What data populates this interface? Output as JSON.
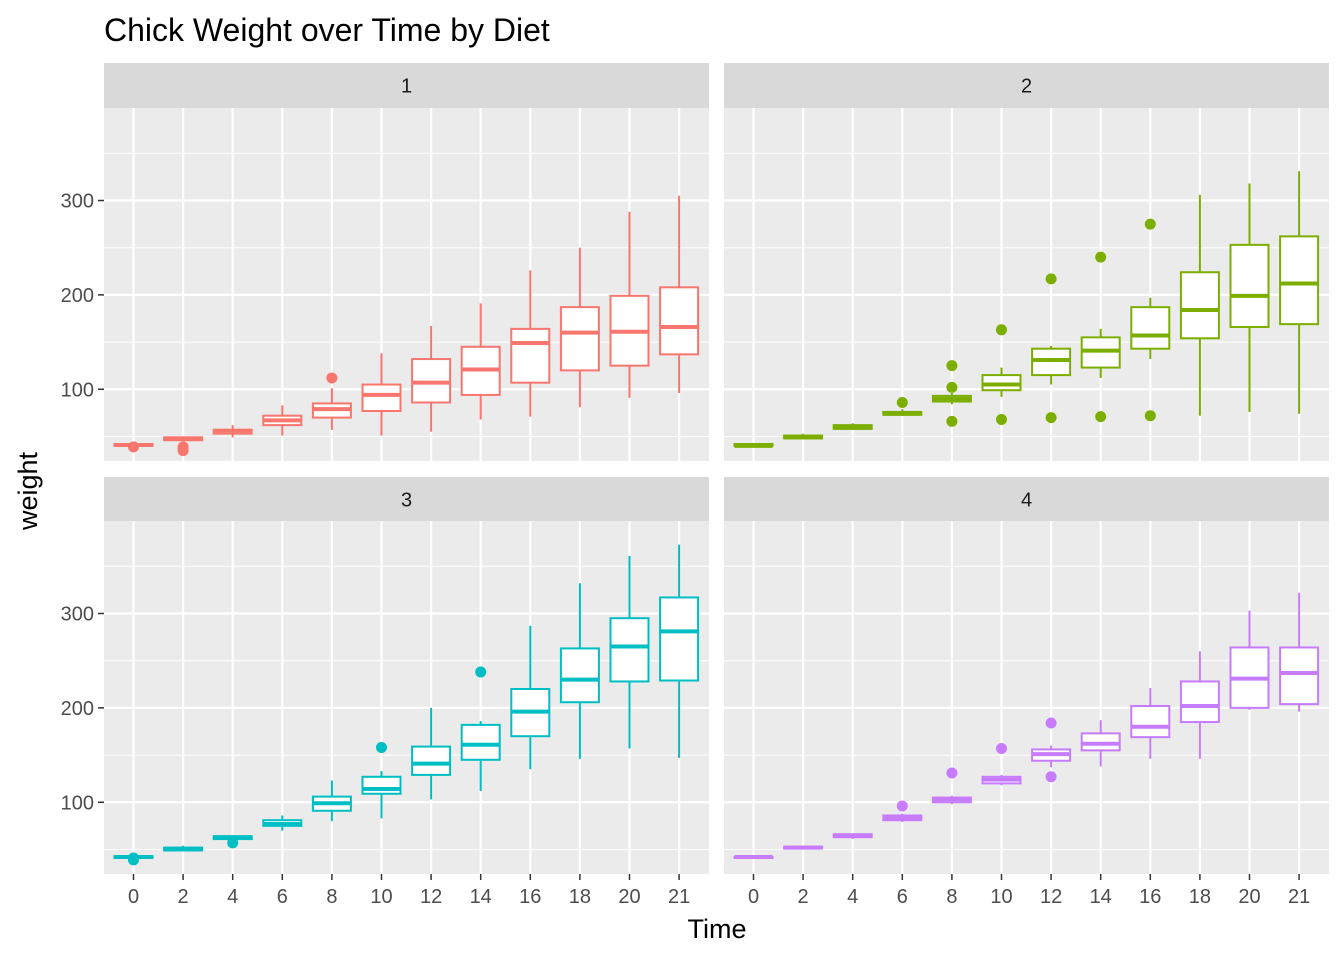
{
  "chart_data": {
    "type": "boxplot",
    "title": "Chick Weight over Time by Diet",
    "xlabel": "Time",
    "ylabel": "weight",
    "facet_by": "Diet",
    "facet_layout": "2x2 grid",
    "legend": "none",
    "grid": true,
    "x_categories": [
      "0",
      "2",
      "4",
      "6",
      "8",
      "10",
      "12",
      "14",
      "16",
      "18",
      "20",
      "21"
    ],
    "y_ticks": [
      100,
      200,
      300
    ],
    "ylim": [
      24,
      398
    ],
    "panels": [
      {
        "label": "1",
        "color": "#F8766D",
        "boxes": [
          {
            "time": "0",
            "min": 39,
            "q1": 40,
            "median": 41,
            "q3": 42,
            "max": 43,
            "outliers": [
              39
            ]
          },
          {
            "time": "2",
            "min": 45,
            "q1": 46,
            "median": 48,
            "q3": 49,
            "max": 50,
            "outliers": [
              35,
              37,
              39
            ]
          },
          {
            "time": "4",
            "min": 49,
            "q1": 53,
            "median": 56,
            "q3": 57,
            "max": 62,
            "outliers": []
          },
          {
            "time": "6",
            "min": 51,
            "q1": 62,
            "median": 67,
            "q3": 72,
            "max": 83,
            "outliers": []
          },
          {
            "time": "8",
            "min": 57,
            "q1": 70,
            "median": 79,
            "q3": 85,
            "max": 101,
            "outliers": [
              112
            ]
          },
          {
            "time": "10",
            "min": 51,
            "q1": 77,
            "median": 94,
            "q3": 105,
            "max": 138,
            "outliers": []
          },
          {
            "time": "12",
            "min": 55,
            "q1": 86,
            "median": 107,
            "q3": 132,
            "max": 167,
            "outliers": []
          },
          {
            "time": "14",
            "min": 68,
            "q1": 94,
            "median": 121,
            "q3": 145,
            "max": 191,
            "outliers": []
          },
          {
            "time": "16",
            "min": 71,
            "q1": 107,
            "median": 149,
            "q3": 164,
            "max": 226,
            "outliers": []
          },
          {
            "time": "18",
            "min": 81,
            "q1": 120,
            "median": 160,
            "q3": 187,
            "max": 250,
            "outliers": []
          },
          {
            "time": "20",
            "min": 91,
            "q1": 125,
            "median": 161,
            "q3": 199,
            "max": 288,
            "outliers": []
          },
          {
            "time": "21",
            "min": 96,
            "q1": 137,
            "median": 166,
            "q3": 208,
            "max": 305,
            "outliers": []
          }
        ]
      },
      {
        "label": "2",
        "color": "#7CAE00",
        "boxes": [
          {
            "time": "0",
            "min": 39,
            "q1": 40,
            "median": 40,
            "q3": 42,
            "max": 43,
            "outliers": []
          },
          {
            "time": "2",
            "min": 47,
            "q1": 48,
            "median": 49,
            "q3": 51,
            "max": 53,
            "outliers": []
          },
          {
            "time": "4",
            "min": 57,
            "q1": 58,
            "median": 60,
            "q3": 62,
            "max": 64,
            "outliers": []
          },
          {
            "time": "6",
            "min": 72,
            "q1": 73,
            "median": 74,
            "q3": 76,
            "max": 79,
            "outliers": [
              86
            ]
          },
          {
            "time": "8",
            "min": 84,
            "q1": 87,
            "median": 90,
            "q3": 93,
            "max": 96,
            "outliers": [
              125,
              102,
              66
            ]
          },
          {
            "time": "10",
            "min": 92,
            "q1": 99,
            "median": 105,
            "q3": 115,
            "max": 123,
            "outliers": [
              163,
              68
            ]
          },
          {
            "time": "12",
            "min": 105,
            "q1": 115,
            "median": 131,
            "q3": 143,
            "max": 146,
            "outliers": [
              217,
              70
            ]
          },
          {
            "time": "14",
            "min": 112,
            "q1": 123,
            "median": 141,
            "q3": 155,
            "max": 164,
            "outliers": [
              240,
              71
            ]
          },
          {
            "time": "16",
            "min": 132,
            "q1": 143,
            "median": 157,
            "q3": 187,
            "max": 197,
            "outliers": [
              275,
              72
            ]
          },
          {
            "time": "18",
            "min": 72,
            "q1": 154,
            "median": 184,
            "q3": 224,
            "max": 306,
            "outliers": []
          },
          {
            "time": "20",
            "min": 76,
            "q1": 166,
            "median": 199,
            "q3": 253,
            "max": 318,
            "outliers": []
          },
          {
            "time": "21",
            "min": 74,
            "q1": 169,
            "median": 212,
            "q3": 262,
            "max": 331,
            "outliers": []
          }
        ]
      },
      {
        "label": "3",
        "color": "#00BFC4",
        "boxes": [
          {
            "time": "0",
            "min": 39,
            "q1": 41,
            "median": 42,
            "q3": 43,
            "max": 44,
            "outliers": [
              39,
              41
            ]
          },
          {
            "time": "2",
            "min": 48,
            "q1": 49,
            "median": 50,
            "q3": 52,
            "max": 54,
            "outliers": []
          },
          {
            "time": "4",
            "min": 60,
            "q1": 61,
            "median": 63,
            "q3": 64,
            "max": 65,
            "outliers": [
              57
            ]
          },
          {
            "time": "6",
            "min": 70,
            "q1": 75,
            "median": 77,
            "q3": 81,
            "max": 86,
            "outliers": []
          },
          {
            "time": "8",
            "min": 80,
            "q1": 91,
            "median": 99,
            "q3": 106,
            "max": 123,
            "outliers": []
          },
          {
            "time": "10",
            "min": 83,
            "q1": 109,
            "median": 114,
            "q3": 127,
            "max": 133,
            "outliers": [
              158
            ]
          },
          {
            "time": "12",
            "min": 103,
            "q1": 129,
            "median": 141,
            "q3": 159,
            "max": 200,
            "outliers": []
          },
          {
            "time": "14",
            "min": 112,
            "q1": 145,
            "median": 161,
            "q3": 182,
            "max": 186,
            "outliers": [
              238
            ]
          },
          {
            "time": "16",
            "min": 135,
            "q1": 170,
            "median": 196,
            "q3": 220,
            "max": 287,
            "outliers": []
          },
          {
            "time": "18",
            "min": 146,
            "q1": 206,
            "median": 230,
            "q3": 263,
            "max": 332,
            "outliers": []
          },
          {
            "time": "20",
            "min": 157,
            "q1": 228,
            "median": 265,
            "q3": 295,
            "max": 361,
            "outliers": []
          },
          {
            "time": "21",
            "min": 147,
            "q1": 229,
            "median": 281,
            "q3": 317,
            "max": 373,
            "outliers": []
          }
        ]
      },
      {
        "label": "4",
        "color": "#C77CFF",
        "boxes": [
          {
            "time": "0",
            "min": 40,
            "q1": 41,
            "median": 42,
            "q3": 42,
            "max": 42,
            "outliers": []
          },
          {
            "time": "2",
            "min": 50,
            "q1": 51,
            "median": 52,
            "q3": 53,
            "max": 54,
            "outliers": []
          },
          {
            "time": "4",
            "min": 61,
            "q1": 63,
            "median": 65,
            "q3": 66,
            "max": 67,
            "outliers": []
          },
          {
            "time": "6",
            "min": 79,
            "q1": 81,
            "median": 83,
            "q3": 86,
            "max": 88,
            "outliers": [
              96
            ]
          },
          {
            "time": "8",
            "min": 98,
            "q1": 100,
            "median": 103,
            "q3": 105,
            "max": 107,
            "outliers": [
              131
            ]
          },
          {
            "time": "10",
            "min": 118,
            "q1": 120,
            "median": 124,
            "q3": 127,
            "max": 129,
            "outliers": [
              157
            ]
          },
          {
            "time": "12",
            "min": 137,
            "q1": 144,
            "median": 151,
            "q3": 156,
            "max": 160,
            "outliers": [
              184,
              127
            ]
          },
          {
            "time": "14",
            "min": 138,
            "q1": 155,
            "median": 162,
            "q3": 173,
            "max": 187,
            "outliers": []
          },
          {
            "time": "16",
            "min": 146,
            "q1": 169,
            "median": 180,
            "q3": 202,
            "max": 221,
            "outliers": []
          },
          {
            "time": "18",
            "min": 146,
            "q1": 185,
            "median": 202,
            "q3": 228,
            "max": 260,
            "outliers": []
          },
          {
            "time": "20",
            "min": 198,
            "q1": 200,
            "median": 231,
            "q3": 264,
            "max": 303,
            "outliers": []
          },
          {
            "time": "21",
            "min": 196,
            "q1": 204,
            "median": 237,
            "q3": 264,
            "max": 322,
            "outliers": []
          }
        ]
      }
    ]
  }
}
